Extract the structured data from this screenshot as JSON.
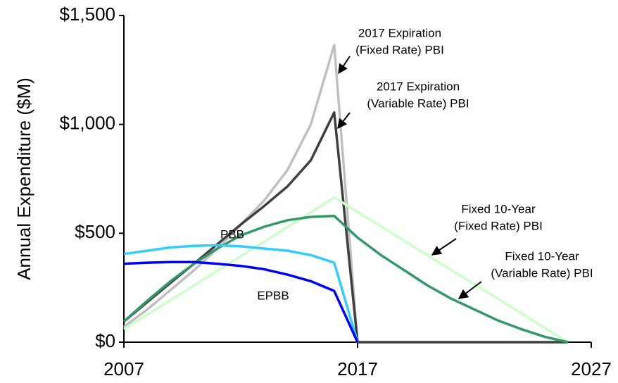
{
  "chart_data": {
    "type": "line",
    "y_label": "Annual Expenditure ($M)",
    "x": [
      2007,
      2008,
      2009,
      2010,
      2011,
      2012,
      2013,
      2014,
      2015,
      2016,
      2017,
      2018,
      2019,
      2020,
      2021,
      2022,
      2023,
      2024,
      2025,
      2026
    ],
    "xlim": [
      2007,
      2027
    ],
    "xticks": [
      2007,
      2017,
      2027
    ],
    "ylim": [
      0,
      1500
    ],
    "yticks": [
      {
        "value": 0,
        "label": "$0"
      },
      {
        "value": 500,
        "label": "$500"
      },
      {
        "value": 1000,
        "label": "$1,000"
      },
      {
        "value": 1500,
        "label": "$1,500"
      }
    ],
    "series": [
      {
        "name": "2017 Expiration (Fixed Rate) PBI",
        "color": "#c0c0c0",
        "values": [
          70,
          150,
          240,
          330,
          430,
          540,
          650,
          790,
          1000,
          1365,
          0,
          0,
          0,
          0,
          0,
          0,
          0,
          0,
          0,
          0
        ]
      },
      {
        "name": "2017 Expiration (Variable Rate) PBI",
        "color": "#404040",
        "values": [
          95,
          184,
          273,
          360,
          450,
          540,
          625,
          715,
          835,
          1055,
          0,
          0,
          0,
          0,
          0,
          0,
          0,
          0,
          0,
          0
        ]
      },
      {
        "name": "Fixed 10-Year (Fixed Rate) PBI",
        "color": "#ccffcc",
        "values": [
          60,
          127,
          194,
          261,
          328,
          395,
          462,
          529,
          596,
          665,
          598,
          532,
          465,
          399,
          332,
          266,
          200,
          133,
          66,
          0
        ]
      },
      {
        "name": "Fixed 10-Year (Variable Rate) PBI",
        "color": "#339966",
        "values": [
          95,
          190,
          280,
          360,
          430,
          490,
          530,
          560,
          575,
          580,
          480,
          400,
          330,
          260,
          200,
          150,
          100,
          60,
          25,
          0
        ]
      },
      {
        "name": "PBB",
        "color": "#33ccff",
        "values": [
          405,
          420,
          435,
          442,
          445,
          440,
          430,
          420,
          400,
          365,
          0,
          null,
          null,
          null,
          null,
          null,
          null,
          null,
          null,
          null
        ]
      },
      {
        "name": "EPBB",
        "color": "#0000ff",
        "values": [
          360,
          365,
          368,
          368,
          360,
          350,
          335,
          310,
          280,
          235,
          0,
          null,
          null,
          null,
          null,
          null,
          null,
          null,
          null,
          null
        ]
      }
    ],
    "annotations": [
      {
        "lines": [
          "2017 Expiration",
          "(Fixed Rate) PBI"
        ]
      },
      {
        "lines": [
          "2017 Expiration",
          "(Variable Rate) PBI"
        ]
      },
      {
        "lines": [
          "Fixed 10-Year",
          "(Fixed Rate) PBI"
        ]
      },
      {
        "lines": [
          "Fixed 10-Year",
          "(Variable Rate) PBI"
        ]
      },
      {
        "lines": [
          "PBB"
        ]
      },
      {
        "lines": [
          "EPBB"
        ]
      }
    ]
  }
}
